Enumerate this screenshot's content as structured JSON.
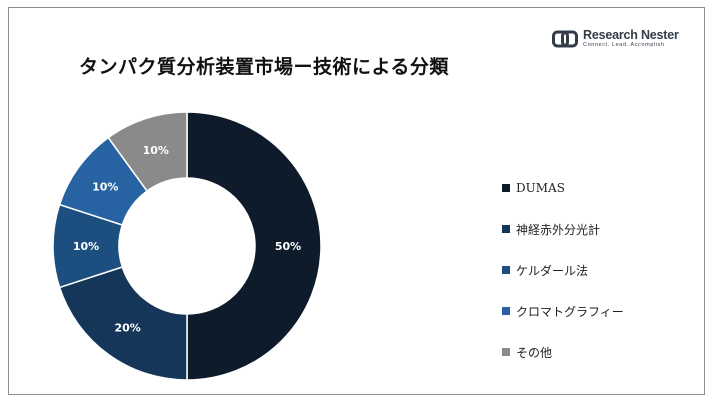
{
  "title": "タンパク質分析装置市場ー技術による分類",
  "logo": {
    "name": "Research Nester",
    "tagline": "Connect. Lead. Accomplish"
  },
  "chart_data": {
    "type": "pie",
    "style": "donut",
    "categories": [
      "DUMAS",
      "神経赤外分光計",
      "ケルダール法",
      "クロマトグラフィー",
      "その他"
    ],
    "values": [
      50,
      20,
      10,
      10,
      10
    ],
    "data_labels": [
      "50%",
      "20%",
      "10%",
      "10%",
      "10%"
    ],
    "colors": [
      "#0d1b2a",
      "#163659",
      "#1c4f80",
      "#2763a3",
      "#8a8a8a"
    ],
    "legend_position": "right"
  }
}
